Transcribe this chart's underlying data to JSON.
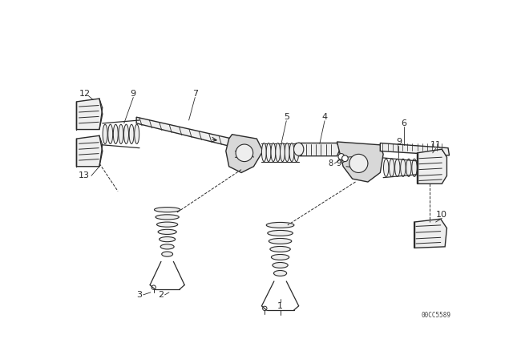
{
  "bg_color": "#ffffff",
  "line_color": "#2a2a2a",
  "catalog_number": "00CC5589",
  "figsize": [
    6.4,
    4.48
  ],
  "dpi": 100
}
